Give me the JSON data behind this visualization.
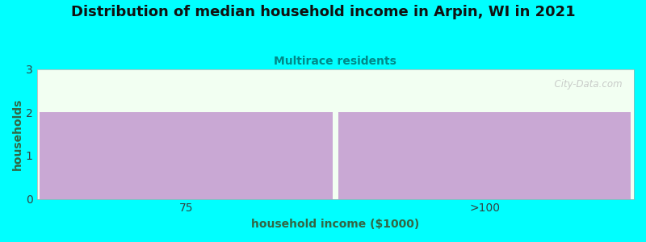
{
  "title": "Distribution of median household income in Arpin, WI in 2021",
  "subtitle": "Multirace residents",
  "categories": [
    "75",
    ">100"
  ],
  "values": [
    2,
    2
  ],
  "bar_color": "#C9A8D4",
  "bar_edgecolor": "#C9A8D4",
  "xlabel": "household income ($1000)",
  "ylabel": "households",
  "ylim": [
    0,
    3
  ],
  "yticks": [
    0,
    1,
    2,
    3
  ],
  "background_color": "#00FFFF",
  "plot_bg_color": "#F2FFF2",
  "title_fontsize": 13,
  "subtitle_fontsize": 10,
  "subtitle_color": "#008888",
  "axis_label_color": "#336644",
  "tick_color": "#334444",
  "watermark": "  City-Data.com"
}
